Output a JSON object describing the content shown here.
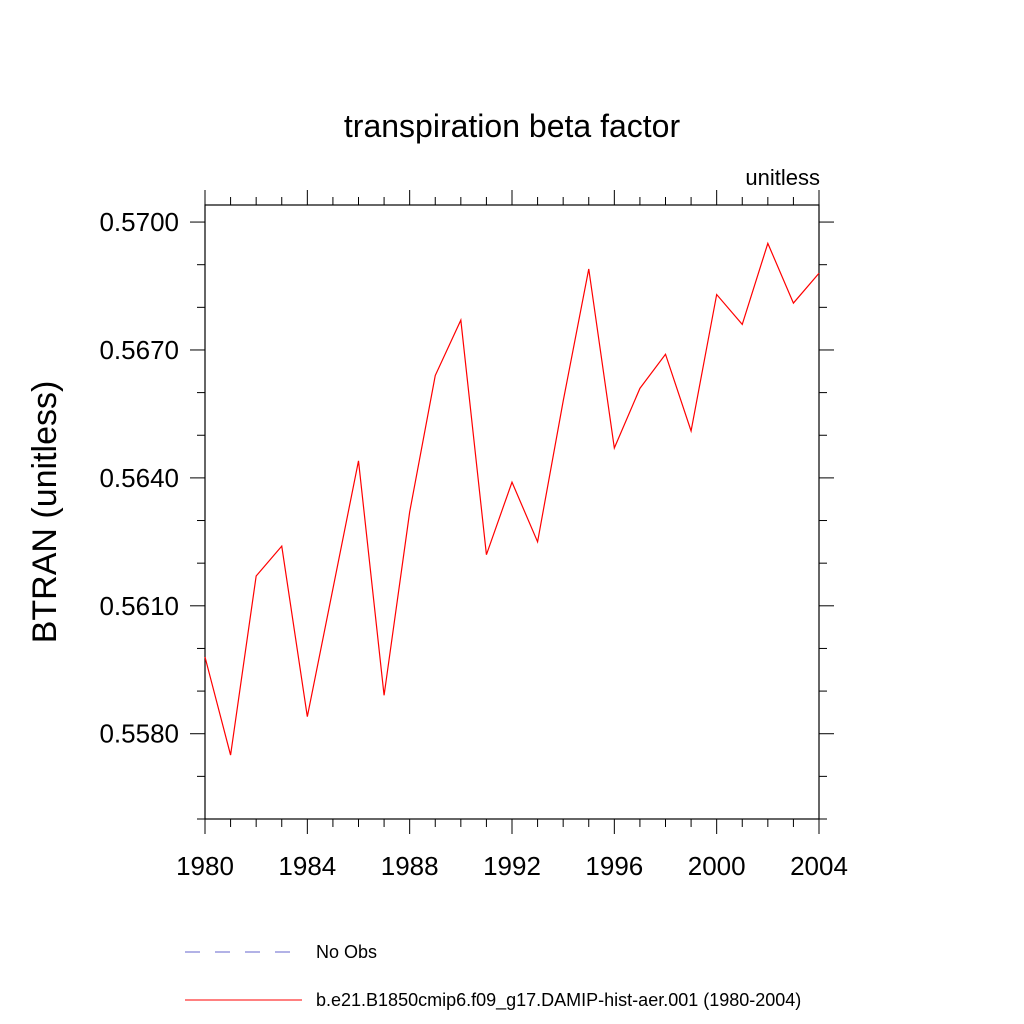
{
  "chart_data": {
    "type": "line",
    "title": "transpiration beta factor",
    "units_label": "unitless",
    "ylabel": "BTRAN  (unitless)",
    "xlabel": "",
    "xlim": [
      1980,
      2004
    ],
    "ylim": [
      0.556,
      0.5704
    ],
    "x_ticks": [
      1980,
      1984,
      1988,
      1992,
      1996,
      2000,
      2004
    ],
    "x_tick_labels": [
      "1980",
      "1984",
      "1988",
      "1992",
      "1996",
      "2000",
      "2004"
    ],
    "y_ticks": [
      0.558,
      0.561,
      0.564,
      0.567,
      0.57
    ],
    "y_tick_labels": [
      "0.5580",
      "0.5610",
      "0.5640",
      "0.5670",
      "0.5700"
    ],
    "grid": false,
    "legend_position": "bottom",
    "series": [
      {
        "name": "b.e21.B1850cmip6.f09_g17.DAMIP-hist-aer.001 (1980-2004)",
        "color": "#ff0000",
        "style": "solid",
        "x": [
          1980,
          1981,
          1982,
          1983,
          1984,
          1985,
          1986,
          1987,
          1988,
          1989,
          1990,
          1991,
          1992,
          1993,
          1994,
          1995,
          1996,
          1997,
          1998,
          1999,
          2000,
          2001,
          2002,
          2003,
          2004
        ],
        "values": [
          0.5598,
          0.5575,
          0.5617,
          0.5624,
          0.5584,
          0.5614,
          0.5644,
          0.5589,
          0.5632,
          0.5664,
          0.5677,
          0.5622,
          0.5639,
          0.5625,
          0.5658,
          0.5689,
          0.5647,
          0.5661,
          0.5669,
          0.5651,
          0.5683,
          0.5676,
          0.5695,
          0.5681,
          0.5688
        ]
      }
    ],
    "legend": [
      {
        "label": "No Obs",
        "color": "#6666cc",
        "style": "dashed"
      },
      {
        "label": "b.e21.B1850cmip6.f09_g17.DAMIP-hist-aer.001 (1980-2004)",
        "color": "#ff0000",
        "style": "solid"
      }
    ]
  }
}
